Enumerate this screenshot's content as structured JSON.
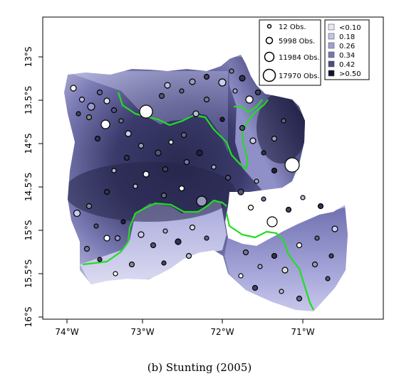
{
  "caption": "(b) Stunting (2005)",
  "axes": {
    "x_ticks": [
      "74°W",
      "73°W",
      "72°W",
      "71°W"
    ],
    "y_ticks": [
      "13°S",
      "13.5°S",
      "14°S",
      "14.5°S",
      "15°S",
      "15.5°S",
      "16°S"
    ]
  },
  "legends": {
    "size_legend": [
      {
        "label": "12 Obs."
      },
      {
        "label": "5998 Obs."
      },
      {
        "label": "11984 Obs."
      },
      {
        "label": "17970 Obs."
      }
    ],
    "color_legend": [
      {
        "label": "<0.10",
        "color": "#e8e8f6"
      },
      {
        "label": "0.18",
        "color": "#c4c4ea"
      },
      {
        "label": "0.26",
        "color": "#a0a0d8"
      },
      {
        "label": "0.34",
        "color": "#7676b4"
      },
      {
        "label": "0.42",
        "color": "#4b4b86"
      },
      {
        "label": ">0.50",
        "color": "#12122e"
      }
    ]
  },
  "colors": {
    "boundary": "#22dd22",
    "region_dark": "#1b1b3a",
    "region_light": "#e6e6f6"
  }
}
